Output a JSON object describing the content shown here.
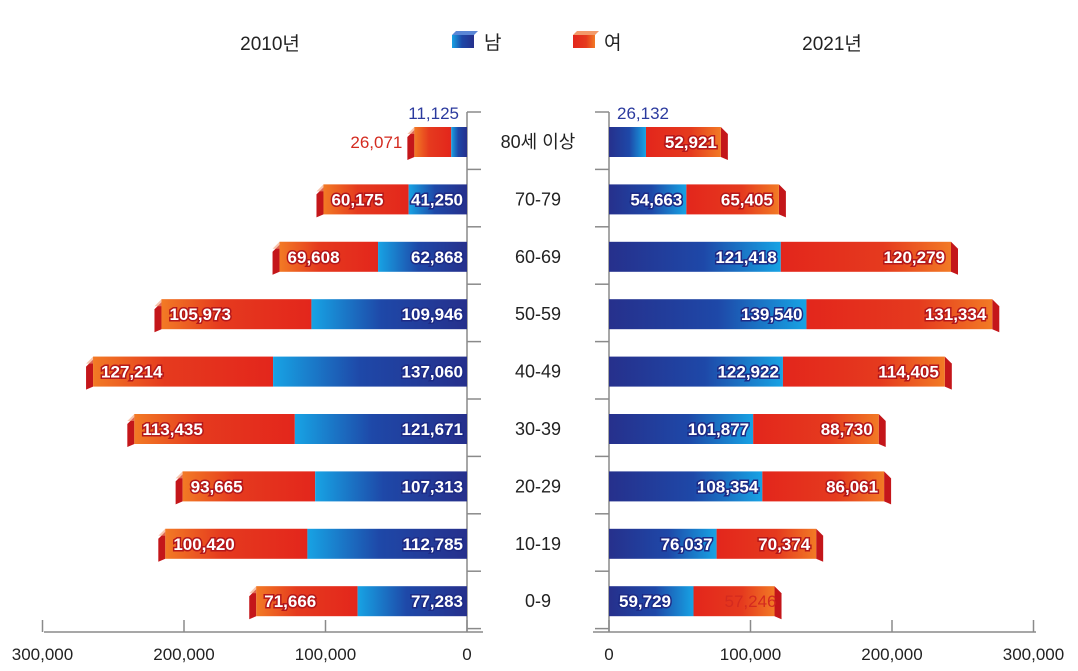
{
  "chart_data": {
    "type": "bar",
    "subtype": "population-pyramid",
    "panels": [
      "2010년",
      "2021년"
    ],
    "legend": {
      "male": "남",
      "female": "여"
    },
    "colors": {
      "male": "#1f2f8c",
      "male_light": "#18a4e6",
      "female": "#e2251b",
      "female_light": "#f07a22"
    },
    "categories": [
      "80세 이상",
      "70-79",
      "60-69",
      "50-59",
      "40-49",
      "30-39",
      "20-29",
      "10-19",
      "0-9"
    ],
    "series_2010": {
      "male": [
        11125,
        41250,
        62868,
        109946,
        137060,
        121671,
        107313,
        112785,
        77283
      ],
      "female": [
        26071,
        60175,
        69608,
        105973,
        127214,
        113435,
        93665,
        100420,
        71666
      ]
    },
    "series_2021": {
      "male": [
        26132,
        54663,
        121418,
        139540,
        122922,
        101877,
        108354,
        76037,
        59729
      ],
      "female": [
        52921,
        65405,
        120279,
        131334,
        114405,
        88730,
        86061,
        70374,
        57246
      ]
    },
    "labels_2010": {
      "male": [
        "11,125",
        "41,250",
        "62,868",
        "109,946",
        "137,060",
        "121,671",
        "107,313",
        "112,785",
        "77,283"
      ],
      "female": [
        "26,071",
        "60,175",
        "69,608",
        "105,973",
        "127,214",
        "113,435",
        "93,665",
        "100,420",
        "71,666"
      ]
    },
    "labels_2021": {
      "male": [
        "26,132",
        "54,663",
        "121,418",
        "139,540",
        "122,922",
        "101,877",
        "108,354",
        "76,037",
        "59,729"
      ],
      "female": [
        "52,921",
        "65,405",
        "120,279",
        "131,334",
        "114,405",
        "88,730",
        "86,061",
        "70,374",
        "57,246"
      ]
    },
    "xlim": [
      0,
      300000
    ],
    "ticks_left": [
      "300,000",
      "200,000",
      "100,000",
      "0"
    ],
    "ticks_right": [
      "0",
      "100,000",
      "200,000",
      "300,000"
    ],
    "grid": false
  }
}
